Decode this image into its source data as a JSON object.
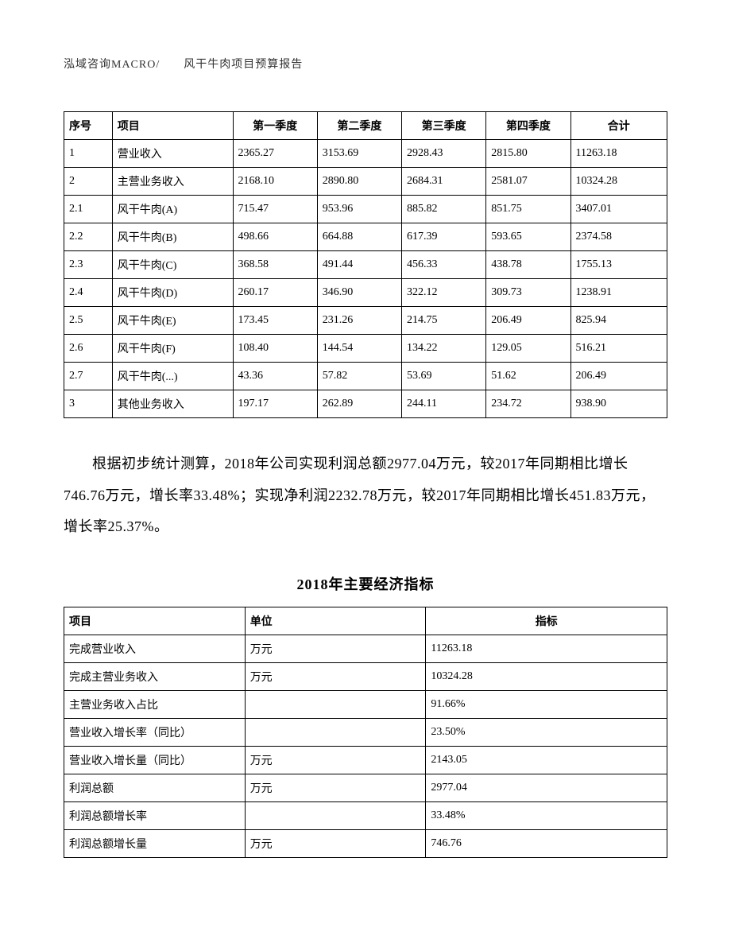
{
  "header": "泓域咨询MACRO/　　风干牛肉项目预算报告",
  "table1": {
    "columns": [
      "序号",
      "项目",
      "第一季度",
      "第二季度",
      "第三季度",
      "第四季度",
      "合计"
    ],
    "rows": [
      [
        "1",
        "营业收入",
        "2365.27",
        "3153.69",
        "2928.43",
        "2815.80",
        "11263.18"
      ],
      [
        "2",
        "主营业务收入",
        "2168.10",
        "2890.80",
        "2684.31",
        "2581.07",
        "10324.28"
      ],
      [
        "2.1",
        "风干牛肉(A)",
        "715.47",
        "953.96",
        "885.82",
        "851.75",
        "3407.01"
      ],
      [
        "2.2",
        "风干牛肉(B)",
        "498.66",
        "664.88",
        "617.39",
        "593.65",
        "2374.58"
      ],
      [
        "2.3",
        "风干牛肉(C)",
        "368.58",
        "491.44",
        "456.33",
        "438.78",
        "1755.13"
      ],
      [
        "2.4",
        "风干牛肉(D)",
        "260.17",
        "346.90",
        "322.12",
        "309.73",
        "1238.91"
      ],
      [
        "2.5",
        "风干牛肉(E)",
        "173.45",
        "231.26",
        "214.75",
        "206.49",
        "825.94"
      ],
      [
        "2.6",
        "风干牛肉(F)",
        "108.40",
        "144.54",
        "134.22",
        "129.05",
        "516.21"
      ],
      [
        "2.7",
        "风干牛肉(...)",
        "43.36",
        "57.82",
        "53.69",
        "51.62",
        "206.49"
      ],
      [
        "3",
        "其他业务收入",
        "197.17",
        "262.89",
        "244.11",
        "234.72",
        "938.90"
      ]
    ]
  },
  "paragraph": "根据初步统计测算，2018年公司实现利润总额2977.04万元，较2017年同期相比增长746.76万元，增长率33.48%；实现净利润2232.78万元，较2017年同期相比增长451.83万元，增长率25.37%。",
  "subtitle": "2018年主要经济指标",
  "table2": {
    "columns": [
      "项目",
      "单位",
      "指标"
    ],
    "rows": [
      [
        "完成营业收入",
        "万元",
        "11263.18"
      ],
      [
        "完成主营业务收入",
        "万元",
        "10324.28"
      ],
      [
        "主营业务收入占比",
        "",
        "91.66%"
      ],
      [
        "营业收入增长率（同比）",
        "",
        "23.50%"
      ],
      [
        "营业收入增长量（同比）",
        "万元",
        "2143.05"
      ],
      [
        "利润总额",
        "万元",
        "2977.04"
      ],
      [
        "利润总额增长率",
        "",
        "33.48%"
      ],
      [
        "利润总额增长量",
        "万元",
        "746.76"
      ]
    ]
  }
}
